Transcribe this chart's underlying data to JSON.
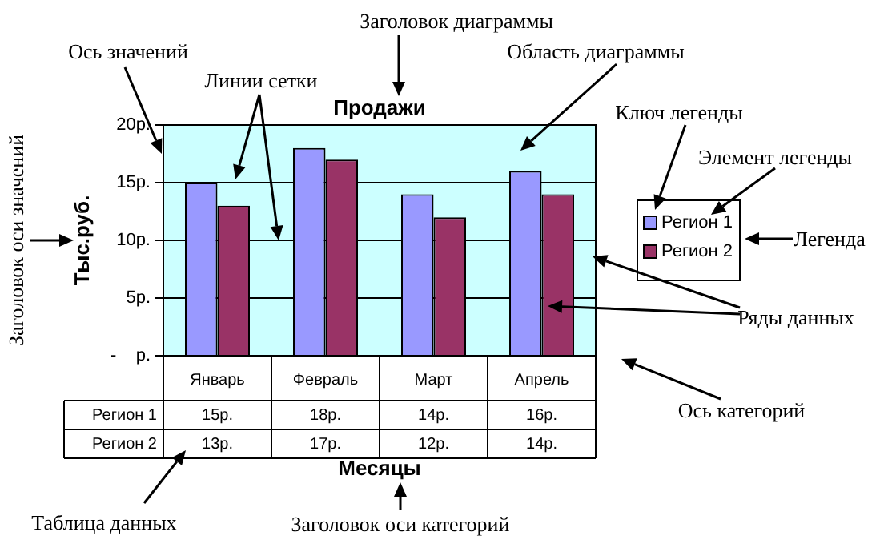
{
  "chart_data": {
    "type": "bar",
    "title": "Продажи",
    "xlabel": "Месяцы",
    "ylabel": "Тыс.руб.",
    "categories": [
      "Январь",
      "Февраль",
      "Март",
      "Апрель"
    ],
    "series": [
      {
        "name": "Регион 1",
        "color": "#9999ff",
        "values": [
          15,
          18,
          14,
          16
        ],
        "value_labels": [
          "15р.",
          "18р.",
          "14р.",
          "16р."
        ]
      },
      {
        "name": "Регион 2",
        "color": "#993366",
        "values": [
          13,
          17,
          12,
          14
        ],
        "value_labels": [
          "13р.",
          "17р.",
          "12р.",
          "14р."
        ]
      }
    ],
    "ylim": [
      0,
      20
    ],
    "yticks": [
      {
        "value": 0,
        "label": "-    р."
      },
      {
        "value": 5,
        "label": "5р."
      },
      {
        "value": 10,
        "label": "10р."
      },
      {
        "value": 15,
        "label": "15р."
      },
      {
        "value": 20,
        "label": "20р."
      }
    ],
    "grid": "y",
    "legend": "right",
    "annotations": [
      "Заголовок диаграммы",
      "Ось значений",
      "Линии сетки",
      "Область диаграммы",
      "Ключ легенды",
      "Элемент легенды",
      "Легенда",
      "Ряды данных",
      "Ось категорий",
      "Таблица данных",
      "Заголовок оси категорий",
      "Заголовок оси значений"
    ]
  }
}
